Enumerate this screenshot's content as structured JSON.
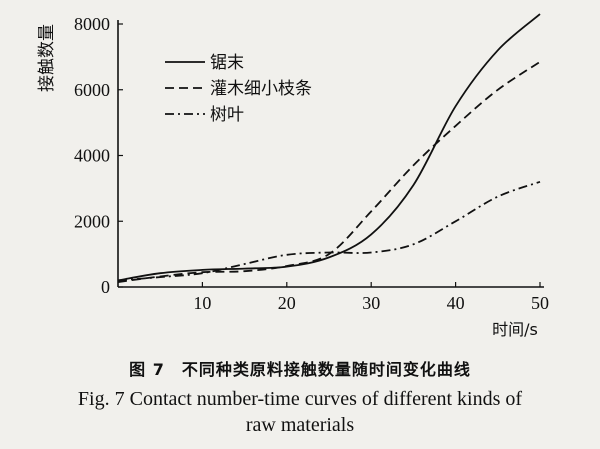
{
  "chart_data": {
    "type": "line",
    "ylabel": "接触数量",
    "xlabel": "时间/s",
    "xlim": [
      0,
      50
    ],
    "ylim": [
      0,
      8000
    ],
    "x_ticks": [
      10,
      20,
      30,
      40,
      50
    ],
    "y_ticks": [
      0,
      2000,
      4000,
      6000,
      8000
    ],
    "x_tick_labels": [
      "10",
      "20",
      "30",
      "40",
      "50"
    ],
    "y_tick_labels": [
      "0",
      "2000",
      "4000",
      "6000",
      "8000"
    ],
    "grid": false,
    "legend_position": "top-left",
    "x": [
      0,
      5,
      10,
      15,
      20,
      25,
      30,
      35,
      40,
      45,
      50
    ],
    "series": [
      {
        "name": "锯末",
        "style": "solid",
        "values": [
          200,
          420,
          520,
          560,
          620,
          900,
          1600,
          3100,
          5500,
          7200,
          8300
        ]
      },
      {
        "name": "灌木细小枝条",
        "style": "dashed",
        "values": [
          150,
          320,
          450,
          480,
          640,
          1000,
          2300,
          3700,
          4900,
          6000,
          6850
        ]
      },
      {
        "name": "树叶",
        "style": "dashdot",
        "values": [
          200,
          300,
          420,
          700,
          980,
          1050,
          1050,
          1300,
          2000,
          2750,
          3200
        ]
      }
    ]
  },
  "caption": {
    "cn": "图 7　不同种类原料接触数量随时间变化曲线",
    "en_line1": "Fig.  7   Contact number-time curves of different kinds of",
    "en_line2": "raw materials"
  }
}
